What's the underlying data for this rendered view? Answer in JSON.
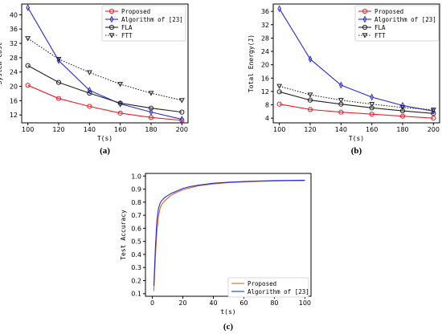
{
  "chart_data": [
    {
      "type": "line",
      "caption": "(a)",
      "xlabel": "T(s)",
      "ylabel": "System Cost",
      "x": [
        100,
        120,
        140,
        160,
        180,
        200
      ],
      "xticks": [
        100,
        120,
        140,
        160,
        180,
        200
      ],
      "yticks": [
        12,
        16,
        20,
        24,
        28,
        32,
        36,
        40
      ],
      "xlim": [
        96,
        204
      ],
      "ylim": [
        9.8,
        43
      ],
      "legend": "top-right",
      "series": [
        {
          "name": "Proposed",
          "values": [
            20.3,
            16.6,
            14.4,
            12.5,
            11.3,
            10.5
          ],
          "color": "#e8202a",
          "marker": "circle",
          "dash": "solid"
        },
        {
          "name": "Algorithm of [23]",
          "values": [
            42.0,
            27.2,
            18.9,
            15.1,
            12.8,
            10.8
          ],
          "color": "#2b2bd4",
          "marker": "diamond",
          "dash": "solid"
        },
        {
          "name": "FLA",
          "values": [
            25.8,
            21.1,
            18.1,
            15.3,
            13.9,
            12.8
          ],
          "color": "#222222",
          "marker": "circle",
          "dash": "solid"
        },
        {
          "name": "FTT",
          "values": [
            33.4,
            27.6,
            23.9,
            20.6,
            18.1,
            16.1
          ],
          "color": "#222222",
          "marker": "triangle-down",
          "dash": "dotted"
        }
      ]
    },
    {
      "type": "line",
      "caption": "(b)",
      "xlabel": "T(s)",
      "ylabel": "Total Energy(J)",
      "x": [
        100,
        120,
        140,
        160,
        180,
        200
      ],
      "xticks": [
        100,
        120,
        140,
        160,
        180,
        200
      ],
      "yticks": [
        4,
        8,
        12,
        16,
        20,
        24,
        28,
        32,
        36
      ],
      "xlim": [
        96,
        204
      ],
      "ylim": [
        2.6,
        38.2
      ],
      "legend": "top-right",
      "series": [
        {
          "name": "Proposed",
          "values": [
            8.2,
            6.6,
            5.8,
            5.2,
            4.6,
            4.0
          ],
          "color": "#e8202a",
          "marker": "circle",
          "dash": "solid"
        },
        {
          "name": "Algorithm of [23]",
          "values": [
            36.8,
            21.7,
            13.9,
            10.3,
            7.8,
            6.1
          ],
          "color": "#2b2bd4",
          "marker": "diamond",
          "dash": "solid"
        },
        {
          "name": "FLA",
          "values": [
            11.9,
            9.4,
            8.2,
            7.1,
            6.2,
            5.4
          ],
          "color": "#222222",
          "marker": "circle",
          "dash": "solid"
        },
        {
          "name": "FTT",
          "values": [
            13.6,
            11.0,
            9.4,
            8.2,
            7.2,
            6.5
          ],
          "color": "#222222",
          "marker": "triangle-down",
          "dash": "dotted"
        }
      ]
    },
    {
      "type": "line",
      "caption": "(c)",
      "xlabel": "t(s)",
      "ylabel": "Test Accuracy",
      "xticks": [
        0,
        20,
        40,
        60,
        80,
        100
      ],
      "yticks": [
        0.1,
        0.2,
        0.3,
        0.4,
        0.5,
        0.6,
        0.7,
        0.8,
        0.9,
        1.0
      ],
      "xlim": [
        -4.5,
        104
      ],
      "ylim": [
        0.08,
        1.02
      ],
      "legend": "lower-right",
      "series": [
        {
          "name": "Proposed",
          "color": "#d2691e",
          "x": [
            1,
            2,
            3,
            4,
            5,
            6,
            8,
            10,
            12,
            15,
            20,
            25,
            30,
            40,
            50,
            60,
            70,
            80,
            90,
            100
          ],
          "values": [
            0.12,
            0.38,
            0.58,
            0.69,
            0.75,
            0.78,
            0.81,
            0.83,
            0.85,
            0.87,
            0.895,
            0.91,
            0.925,
            0.94,
            0.95,
            0.955,
            0.96,
            0.962,
            0.964,
            0.965
          ]
        },
        {
          "name": "Algorithm of [23]",
          "color": "#2b2bd4",
          "x": [
            1,
            2,
            3,
            4,
            5,
            6,
            8,
            10,
            12,
            15,
            20,
            25,
            30,
            40,
            50,
            60,
            70,
            80,
            90,
            100
          ],
          "values": [
            0.16,
            0.45,
            0.66,
            0.75,
            0.79,
            0.81,
            0.835,
            0.85,
            0.865,
            0.88,
            0.905,
            0.92,
            0.93,
            0.945,
            0.953,
            0.958,
            0.962,
            0.965,
            0.967,
            0.968
          ]
        }
      ]
    }
  ]
}
